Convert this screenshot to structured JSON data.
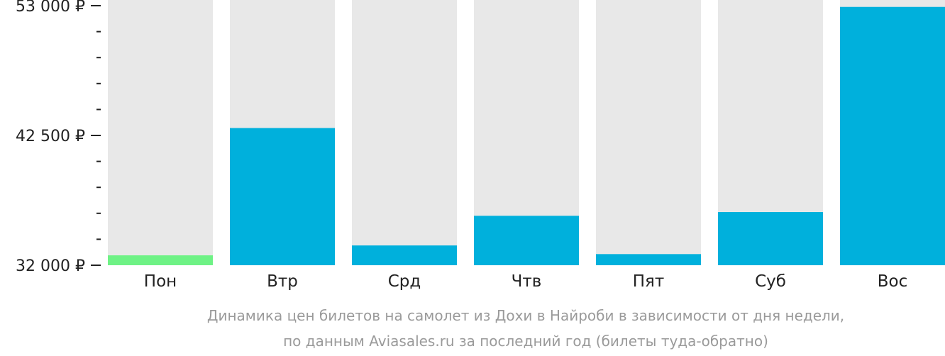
{
  "chart_data": {
    "type": "bar",
    "categories": [
      "Пон",
      "Втр",
      "Срд",
      "Чтв",
      "Пят",
      "Суб",
      "Вос"
    ],
    "values": [
      32800,
      43100,
      33600,
      36000,
      32900,
      36300,
      52900
    ],
    "ylim": [
      32000,
      53000
    ],
    "y_ticks": [
      {
        "value": 32000,
        "label": "32 000 ₽"
      },
      {
        "value": 42500,
        "label": "42 500 ₽"
      },
      {
        "value": 53000,
        "label": "53 000 ₽"
      }
    ],
    "y_minor_step": 2100,
    "grid": false,
    "highlight_index": 0,
    "colors": {
      "bar": "#00b0dc",
      "highlight": "#6ef285",
      "background_bar": "#e8e8e8",
      "axis": "#222222"
    },
    "caption_lines": [
      "Динамика цен билетов на самолет из Дохи в Найроби в зависимости от дня недели,",
      "по данным Aviasales.ru за последний год (билеты туда-обратно)"
    ]
  }
}
